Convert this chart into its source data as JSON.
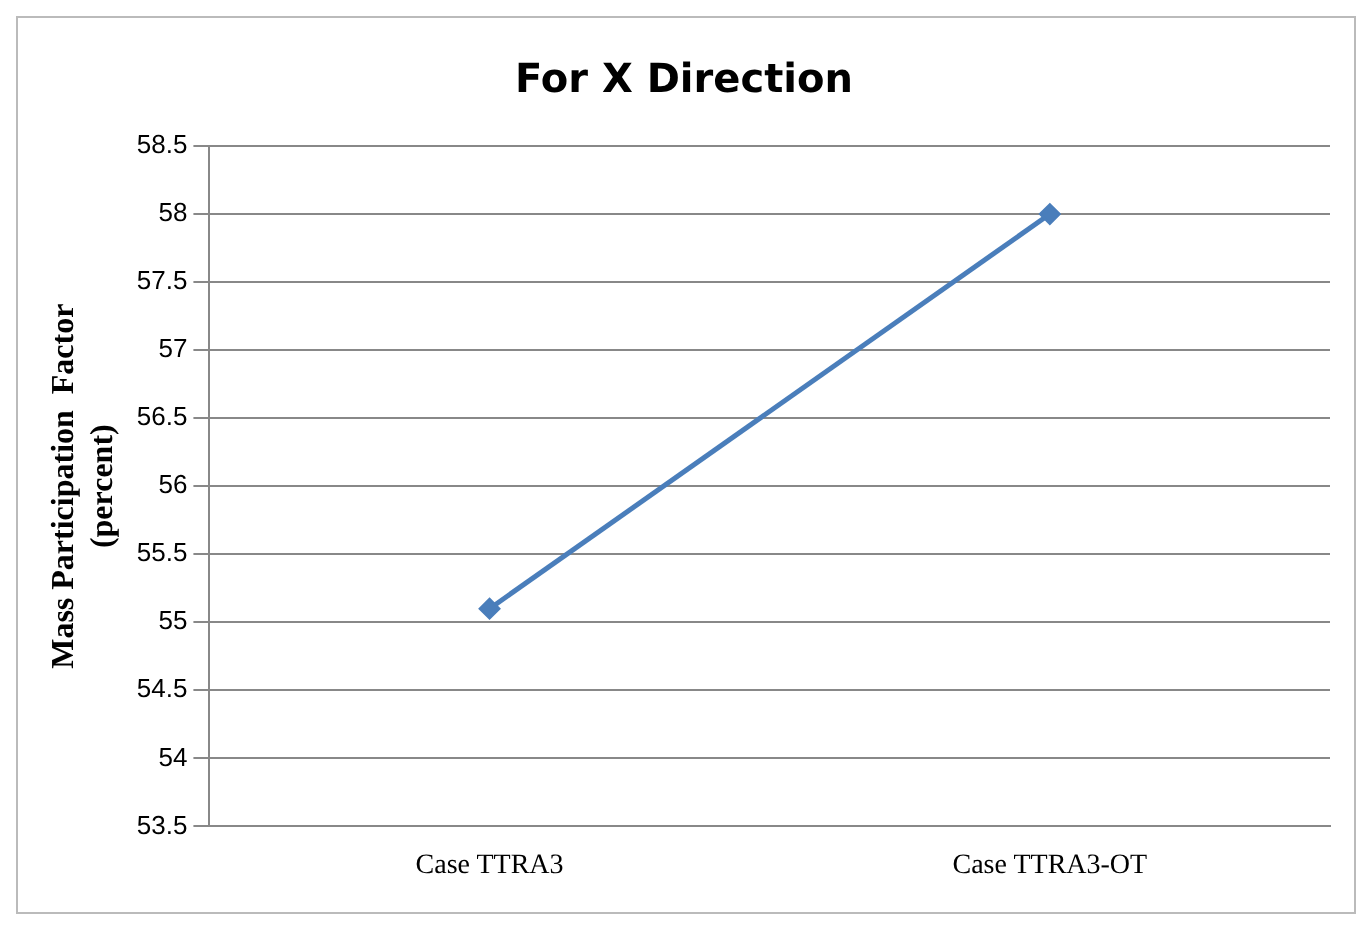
{
  "chart_data": {
    "type": "line",
    "title": "For X Direction",
    "ylabel": "Mass Participation  Factor\n(percent)",
    "categories": [
      "Case TTRA3",
      "Case TTRA3-OT"
    ],
    "series": [
      {
        "color": "#4a7ebb",
        "values": [
          55.1,
          58.0
        ]
      }
    ],
    "ylim": [
      53.5,
      58.5
    ],
    "yticks": [
      53.5,
      54,
      54.5,
      55,
      55.5,
      56,
      56.5,
      57,
      57.5,
      58,
      58.5
    ],
    "grid": "y",
    "legend": false,
    "marker": "diamond",
    "line_style": "solid"
  }
}
